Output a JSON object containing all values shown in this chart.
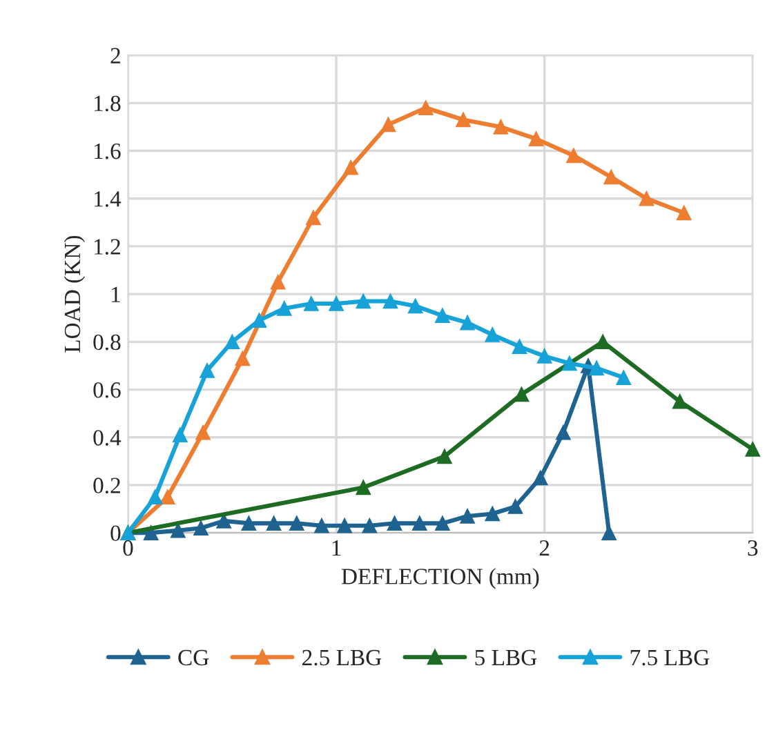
{
  "chart_data": {
    "type": "line",
    "xlabel": "DEFLECTION (mm)",
    "ylabel": "LOAD (KN)",
    "xlim": [
      0,
      3
    ],
    "ylim": [
      0,
      2
    ],
    "xticks": [
      0,
      1,
      2,
      3
    ],
    "yticks": [
      0,
      0.2,
      0.4,
      0.6,
      0.8,
      1,
      1.2,
      1.4,
      1.6,
      1.8,
      2
    ],
    "grid": true,
    "legend": "bottom",
    "marker": "triangle",
    "line_style": "solid",
    "series": [
      {
        "name": "CG",
        "color": "#1f6391",
        "x": [
          0,
          0.11,
          0.24,
          0.35,
          0.46,
          0.58,
          0.7,
          0.81,
          0.93,
          1.04,
          1.16,
          1.28,
          1.4,
          1.51,
          1.63,
          1.75,
          1.86,
          1.98,
          2.09,
          2.21,
          2.31
        ],
        "values": [
          0,
          0,
          0.01,
          0.02,
          0.05,
          0.04,
          0.04,
          0.04,
          0.03,
          0.03,
          0.03,
          0.04,
          0.04,
          0.04,
          0.07,
          0.08,
          0.11,
          0.23,
          0.42,
          0.7,
          0
        ]
      },
      {
        "name": "2.5 LBG",
        "color": "#ed7d31",
        "x": [
          0,
          0.19,
          0.36,
          0.55,
          0.72,
          0.89,
          1.07,
          1.25,
          1.43,
          1.61,
          1.79,
          1.96,
          2.14,
          2.32,
          2.49,
          2.67
        ],
        "values": [
          0,
          0.15,
          0.42,
          0.73,
          1.05,
          1.32,
          1.53,
          1.71,
          1.78,
          1.73,
          1.7,
          1.65,
          1.58,
          1.49,
          1.4,
          1.34
        ]
      },
      {
        "name": "5 LBG",
        "color": "#1e6b24",
        "x": [
          0,
          1.13,
          1.52,
          1.89,
          2.28,
          2.65,
          3.0
        ],
        "values": [
          0,
          0.19,
          0.32,
          0.58,
          0.8,
          0.55,
          0.35
        ]
      },
      {
        "name": "7.5 LBG",
        "color": "#17a2d8",
        "x": [
          0,
          0.13,
          0.25,
          0.38,
          0.5,
          0.63,
          0.75,
          0.88,
          1.0,
          1.13,
          1.26,
          1.38,
          1.51,
          1.63,
          1.75,
          1.88,
          2.0,
          2.12,
          2.25,
          2.38
        ],
        "values": [
          0,
          0.15,
          0.41,
          0.68,
          0.8,
          0.89,
          0.94,
          0.96,
          0.96,
          0.97,
          0.97,
          0.95,
          0.91,
          0.88,
          0.83,
          0.78,
          0.74,
          0.71,
          0.69,
          0.65
        ]
      }
    ]
  }
}
